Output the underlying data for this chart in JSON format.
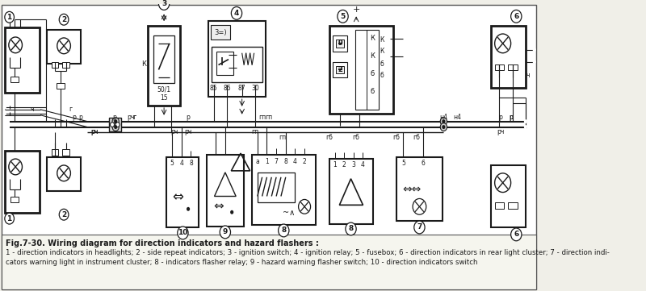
{
  "bg_color": "#f0efe8",
  "diagram_bg": "#ffffff",
  "line_color": "#1a1a1a",
  "border_color": "#333333",
  "title_text": "Fig.7-30. Wiring diagram for direction indicators and hazard flashers :",
  "caption_line1": "1 - direction indicators in headlights; 2 - side repeat indicators; 3 - ignition switch; 4 - ignition relay; 5 - fusebox; 6 - direction indicators in rear light cluster; 7 - direction indi-",
  "caption_line2": "cators warning light in instrument cluster; 8 - indicators flasher relay; 9 - hazard warning flasher switch; 10 - direction indicators switch",
  "title_fontsize": 7.0,
  "caption_fontsize": 6.2,
  "fig_width": 8.0,
  "fig_height": 3.61,
  "dpi": 100
}
